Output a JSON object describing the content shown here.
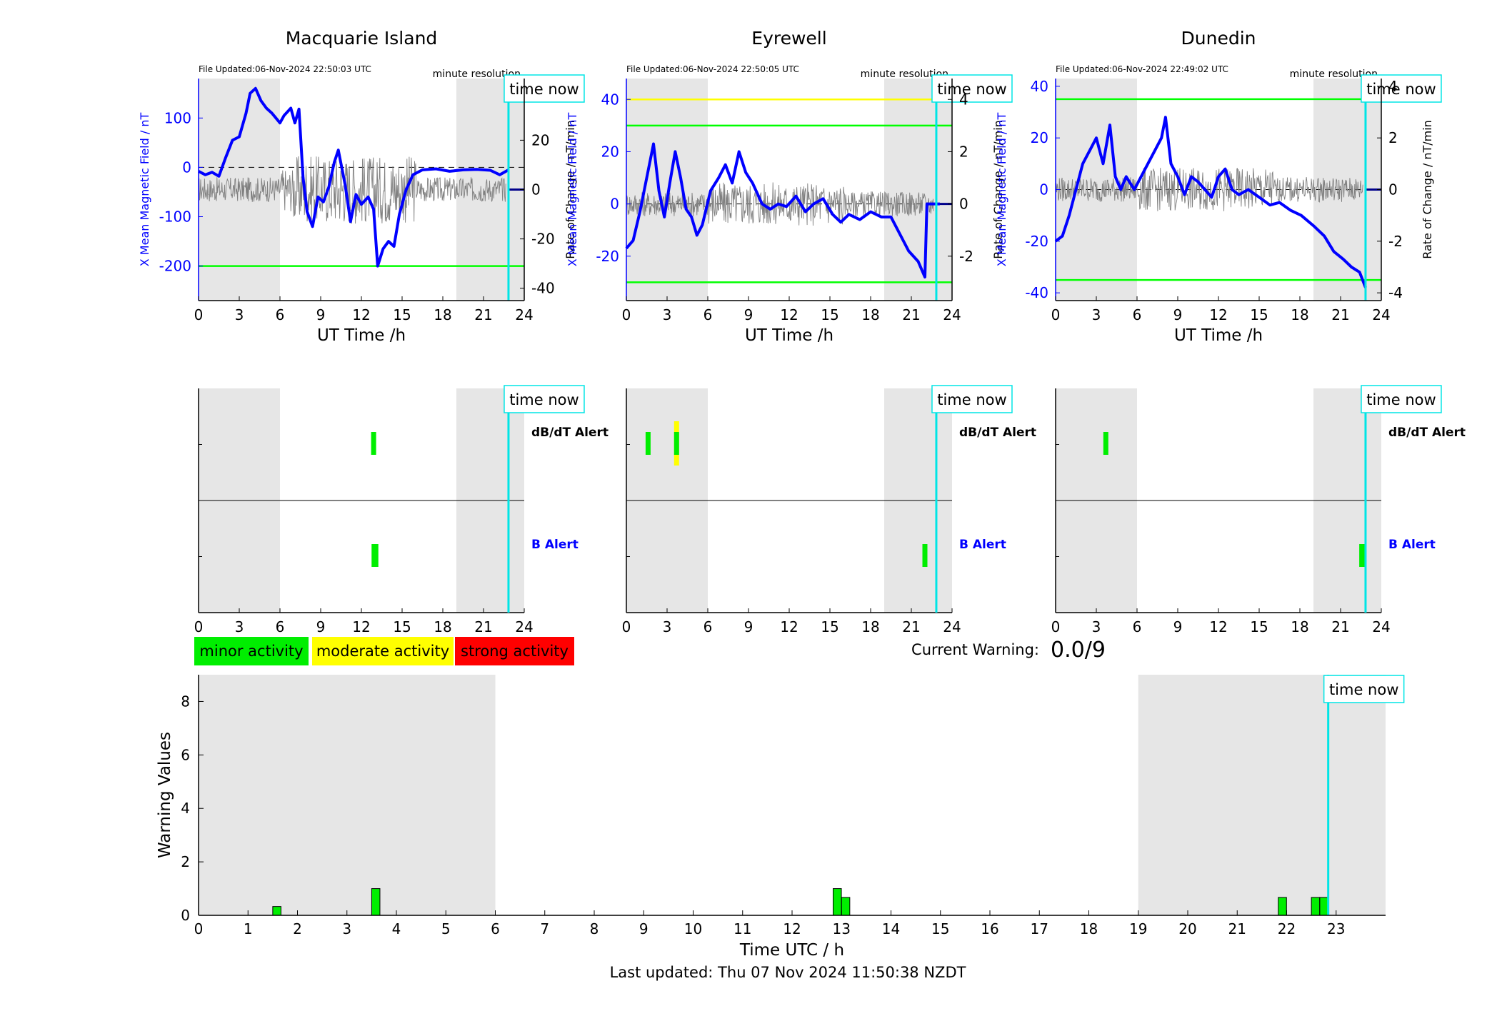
{
  "colors": {
    "field": "#0000ff",
    "rate": "#000000",
    "rate_trace": "#808080",
    "threshold_green": "#00ff00",
    "threshold_yellow": "#ffff00",
    "time_now": "#00e5e5",
    "night_shade": "#e6e6e6",
    "minor": "#00ee00",
    "moderate": "#ffff00",
    "strong": "#ff0000"
  },
  "common": {
    "x_label": "UT Time /h",
    "x_ticks": [
      0,
      3,
      6,
      9,
      12,
      15,
      18,
      21,
      24
    ],
    "x_range": [
      0,
      24
    ],
    "left_axis_label": "X Mean Magnetic Field / nT",
    "right_axis_label": "Rate of Change / nT/min",
    "resolution_label": "minute resolution",
    "time_now_label": "time now",
    "time_now_hour": 22.84,
    "night_shading": [
      [
        0,
        6
      ],
      [
        19,
        24
      ]
    ],
    "dbdt_alert_label": "dB/dT Alert",
    "b_alert_label": "B Alert"
  },
  "stations": [
    {
      "name": "Macquarie Island",
      "file_updated": "File Updated:06-Nov-2024 22:50:03 UTC",
      "field_ylim": [
        -270,
        180
      ],
      "field_ticks": [
        -200,
        -100,
        0,
        100
      ],
      "rate_ylim": [
        -45,
        45
      ],
      "rate_ticks": [
        -40,
        -20,
        0,
        20
      ],
      "thresholds": [
        {
          "value": -200,
          "color": "green"
        }
      ],
      "field_series": [
        [
          0,
          -8
        ],
        [
          0.5,
          -15
        ],
        [
          1,
          -10
        ],
        [
          1.5,
          -18
        ],
        [
          2,
          20
        ],
        [
          2.5,
          55
        ],
        [
          3,
          62
        ],
        [
          3.5,
          110
        ],
        [
          3.8,
          150
        ],
        [
          4.2,
          160
        ],
        [
          4.6,
          135
        ],
        [
          5,
          120
        ],
        [
          5.4,
          110
        ],
        [
          6,
          90
        ],
        [
          6.3,
          105
        ],
        [
          6.8,
          120
        ],
        [
          7.1,
          90
        ],
        [
          7.4,
          118
        ],
        [
          7.7,
          -20
        ],
        [
          8,
          -90
        ],
        [
          8.4,
          -120
        ],
        [
          8.8,
          -60
        ],
        [
          9.2,
          -70
        ],
        [
          9.6,
          -40
        ],
        [
          10,
          10
        ],
        [
          10.3,
          35
        ],
        [
          10.8,
          -35
        ],
        [
          11.2,
          -110
        ],
        [
          11.6,
          -55
        ],
        [
          12,
          -75
        ],
        [
          12.5,
          -60
        ],
        [
          12.9,
          -85
        ],
        [
          13.2,
          -200
        ],
        [
          13.6,
          -165
        ],
        [
          14,
          -150
        ],
        [
          14.4,
          -160
        ],
        [
          14.8,
          -95
        ],
        [
          15.3,
          -45
        ],
        [
          15.8,
          -15
        ],
        [
          16.5,
          -5
        ],
        [
          17.5,
          -3
        ],
        [
          18.5,
          -8
        ],
        [
          19.5,
          -5
        ],
        [
          20.5,
          -4
        ],
        [
          21.5,
          -6
        ],
        [
          22.2,
          -15
        ],
        [
          22.84,
          -5
        ]
      ],
      "dbdt_alerts": [
        {
          "hour": 12.9,
          "level": "minor"
        }
      ],
      "b_alerts": [
        {
          "hour": 13.0,
          "level": "minor",
          "width": 0.5
        }
      ]
    },
    {
      "name": "Eyrewell",
      "file_updated": "File Updated:06-Nov-2024 22:50:05 UTC",
      "field_ylim": [
        -37,
        48
      ],
      "field_ticks": [
        -20,
        0,
        20,
        40
      ],
      "rate_ylim": [
        -3.7,
        4.8
      ],
      "rate_ticks": [
        -2,
        0,
        2,
        4
      ],
      "thresholds": [
        {
          "value": 40,
          "color": "yellow"
        },
        {
          "value": 30,
          "color": "green"
        },
        {
          "value": -30,
          "color": "green"
        }
      ],
      "field_series": [
        [
          0,
          -17
        ],
        [
          0.5,
          -14
        ],
        [
          1,
          -3
        ],
        [
          1.5,
          10
        ],
        [
          2,
          23
        ],
        [
          2.4,
          5
        ],
        [
          2.8,
          -5
        ],
        [
          3.2,
          8
        ],
        [
          3.6,
          20
        ],
        [
          4,
          10
        ],
        [
          4.4,
          -2
        ],
        [
          4.8,
          -5
        ],
        [
          5.2,
          -12
        ],
        [
          5.6,
          -8
        ],
        [
          6.2,
          5
        ],
        [
          6.8,
          10
        ],
        [
          7.3,
          15
        ],
        [
          7.8,
          8
        ],
        [
          8.3,
          20
        ],
        [
          8.8,
          12
        ],
        [
          9.3,
          8
        ],
        [
          10,
          0
        ],
        [
          10.6,
          -2
        ],
        [
          11.2,
          0
        ],
        [
          11.8,
          -1
        ],
        [
          12.5,
          3
        ],
        [
          13.2,
          -3
        ],
        [
          13.8,
          0
        ],
        [
          14.5,
          2
        ],
        [
          15.2,
          -4
        ],
        [
          15.8,
          -7
        ],
        [
          16.4,
          -4
        ],
        [
          17.2,
          -6
        ],
        [
          18,
          -3
        ],
        [
          18.8,
          -5
        ],
        [
          19.5,
          -5
        ],
        [
          20.2,
          -12
        ],
        [
          20.8,
          -18
        ],
        [
          21.5,
          -22
        ],
        [
          22,
          -28
        ],
        [
          22.15,
          0
        ],
        [
          22.84,
          0
        ],
        [
          23.1,
          0
        ]
      ],
      "dbdt_alerts": [
        {
          "hour": 1.6,
          "level": "minor"
        },
        {
          "hour": 3.7,
          "level": "moderate"
        }
      ],
      "b_alerts": [
        {
          "hour": 22.0,
          "level": "minor",
          "width": 0.3
        }
      ]
    },
    {
      "name": "Dunedin",
      "file_updated": "File Updated:06-Nov-2024 22:49:02 UTC",
      "field_ylim": [
        -43,
        43
      ],
      "field_ticks": [
        -40,
        -20,
        0,
        20,
        40
      ],
      "rate_ylim": [
        -4.3,
        4.3
      ],
      "rate_ticks": [
        -4,
        -2,
        0,
        2,
        4
      ],
      "thresholds": [
        {
          "value": 35,
          "color": "green"
        },
        {
          "value": -35,
          "color": "green"
        }
      ],
      "field_series": [
        [
          0,
          -20
        ],
        [
          0.5,
          -18
        ],
        [
          1,
          -10
        ],
        [
          1.5,
          0
        ],
        [
          2,
          10
        ],
        [
          2.5,
          15
        ],
        [
          3,
          20
        ],
        [
          3.5,
          10
        ],
        [
          4,
          25
        ],
        [
          4.4,
          5
        ],
        [
          4.8,
          0
        ],
        [
          5.2,
          5
        ],
        [
          5.8,
          0
        ],
        [
          6.3,
          5
        ],
        [
          6.8,
          10
        ],
        [
          7.3,
          15
        ],
        [
          7.8,
          20
        ],
        [
          8.1,
          28
        ],
        [
          8.5,
          10
        ],
        [
          9,
          5
        ],
        [
          9.5,
          -2
        ],
        [
          10,
          5
        ],
        [
          10.5,
          3
        ],
        [
          11,
          0
        ],
        [
          11.5,
          -3
        ],
        [
          12,
          5
        ],
        [
          12.5,
          8
        ],
        [
          13,
          0
        ],
        [
          13.5,
          -2
        ],
        [
          14.2,
          0
        ],
        [
          15,
          -3
        ],
        [
          15.8,
          -6
        ],
        [
          16.5,
          -5
        ],
        [
          17.3,
          -8
        ],
        [
          18.1,
          -10
        ],
        [
          19,
          -14
        ],
        [
          19.8,
          -18
        ],
        [
          20.5,
          -24
        ],
        [
          21.2,
          -27
        ],
        [
          21.8,
          -30
        ],
        [
          22.4,
          -32
        ],
        [
          22.84,
          -38
        ]
      ],
      "dbdt_alerts": [
        {
          "hour": 3.7,
          "level": "minor"
        }
      ],
      "b_alerts": [
        {
          "hour": 22.6,
          "level": "minor",
          "width": 0.45
        }
      ]
    }
  ],
  "legend": [
    {
      "label": "minor activity",
      "level": "minor"
    },
    {
      "label": "moderate activity",
      "level": "moderate"
    },
    {
      "label": "strong activity",
      "level": "strong"
    }
  ],
  "current_warning": {
    "label": "Current Warning:",
    "value": "0.0/9"
  },
  "chart_data": {
    "type": "bar",
    "xlabel": "Time UTC / h",
    "ylabel": "Warning Values",
    "xlim": [
      0,
      24
    ],
    "ylim": [
      0,
      9
    ],
    "x_ticks": [
      0,
      1,
      2,
      3,
      4,
      5,
      6,
      7,
      8,
      9,
      10,
      11,
      12,
      13,
      14,
      15,
      16,
      17,
      18,
      19,
      20,
      21,
      22,
      23
    ],
    "y_ticks": [
      0,
      2,
      4,
      6,
      8
    ],
    "bar_width_h": 0.167,
    "x": [
      1.5,
      3.5,
      12.83,
      13.0,
      21.83,
      22.5,
      22.67
    ],
    "values": [
      0.33,
      1.0,
      1.0,
      0.67,
      0.67,
      0.67,
      0.67
    ],
    "night_shading": [
      [
        0,
        6
      ],
      [
        19,
        24
      ]
    ]
  },
  "footer": "Last updated: Thu 07 Nov 2024 11:50:38 NZDT"
}
